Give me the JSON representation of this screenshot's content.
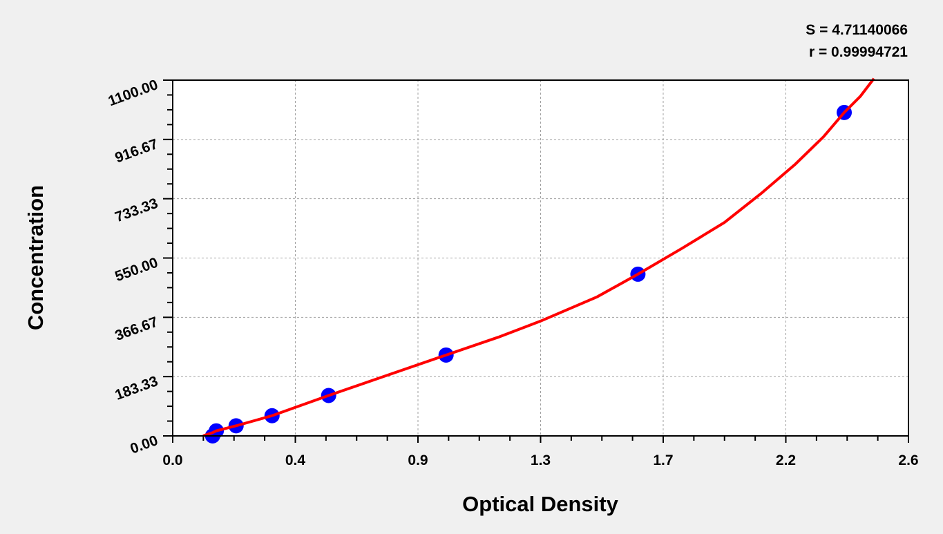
{
  "chart_data": {
    "type": "scatter",
    "title": "",
    "xlabel": "Optical Density",
    "ylabel": "Concentration",
    "xlim": [
      0,
      2.6
    ],
    "ylim": [
      0,
      1100
    ],
    "x_tick_values": [
      0,
      0.4333,
      0.8667,
      1.3,
      1.7333,
      2.1667,
      2.6
    ],
    "x_tick_labels": [
      "0.0",
      "0.4",
      "0.9",
      "1.3",
      "1.7",
      "2.2",
      "2.6"
    ],
    "y_tick_values": [
      0,
      183.33,
      366.67,
      550,
      733.33,
      916.67,
      1100
    ],
    "y_tick_labels": [
      "0.00",
      "183.33",
      "366.67",
      "550.00",
      "733.33",
      "916.67",
      "1100.00"
    ],
    "grid": true,
    "annotations": [
      "S = 4.71140066",
      "r = 0.99994721"
    ],
    "colors": {
      "points": "#0000ff",
      "curve": "#ff0000",
      "background": "#f0f0f0",
      "plot_background": "#ffffff",
      "grid": "#a0a0a0"
    },
    "points": {
      "x": [
        0.141,
        0.154,
        0.224,
        0.351,
        0.551,
        0.966,
        1.644,
        2.373
      ],
      "y": [
        0,
        15.6,
        31.25,
        62.5,
        125,
        250,
        500,
        1000
      ]
    },
    "fit_curve": {
      "x": [
        0.107,
        0.141,
        0.154,
        0.224,
        0.351,
        0.551,
        0.75,
        0.966,
        1.15,
        1.3,
        1.5,
        1.644,
        1.8,
        1.95,
        2.08,
        2.2,
        2.3,
        2.373,
        2.43,
        2.478
      ],
      "y": [
        0,
        10,
        15.6,
        31.25,
        62.5,
        125,
        185,
        250,
        305,
        355,
        430,
        500,
        580,
        660,
        750,
        840,
        925,
        1000,
        1050,
        1105
      ]
    }
  }
}
